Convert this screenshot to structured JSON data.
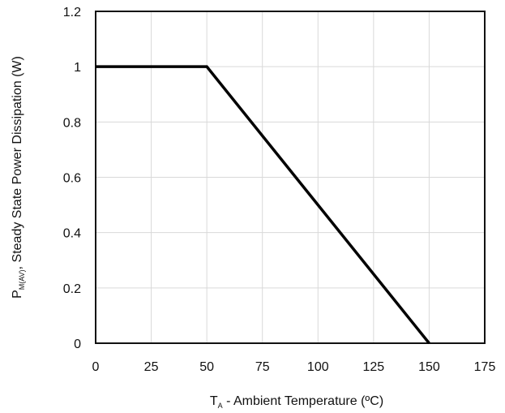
{
  "chart_data": {
    "type": "line",
    "title": "",
    "xlabel": {
      "main": "T",
      "sub": "A",
      "rest": " - Ambient Temperature (ºC)"
    },
    "ylabel": {
      "main": "P",
      "sub": "M(AV)",
      "rest": ", Steady State Power Dissipation (W)"
    },
    "xlim": [
      0,
      175
    ],
    "ylim": [
      0,
      1.2
    ],
    "xticks": [
      0,
      25,
      50,
      75,
      100,
      125,
      150,
      175
    ],
    "yticks": [
      0,
      0.2,
      0.4,
      0.6,
      0.8,
      1,
      1.2
    ],
    "xtick_labels": [
      "0",
      "25",
      "50",
      "75",
      "100",
      "125",
      "150",
      "175"
    ],
    "ytick_labels": [
      "0",
      "0.2",
      "0.4",
      "0.6",
      "0.8",
      "1",
      "1.2"
    ],
    "grid": true,
    "series": [
      {
        "x": [
          0,
          50,
          150
        ],
        "y": [
          1,
          1,
          0
        ],
        "color": "#000000"
      }
    ]
  }
}
